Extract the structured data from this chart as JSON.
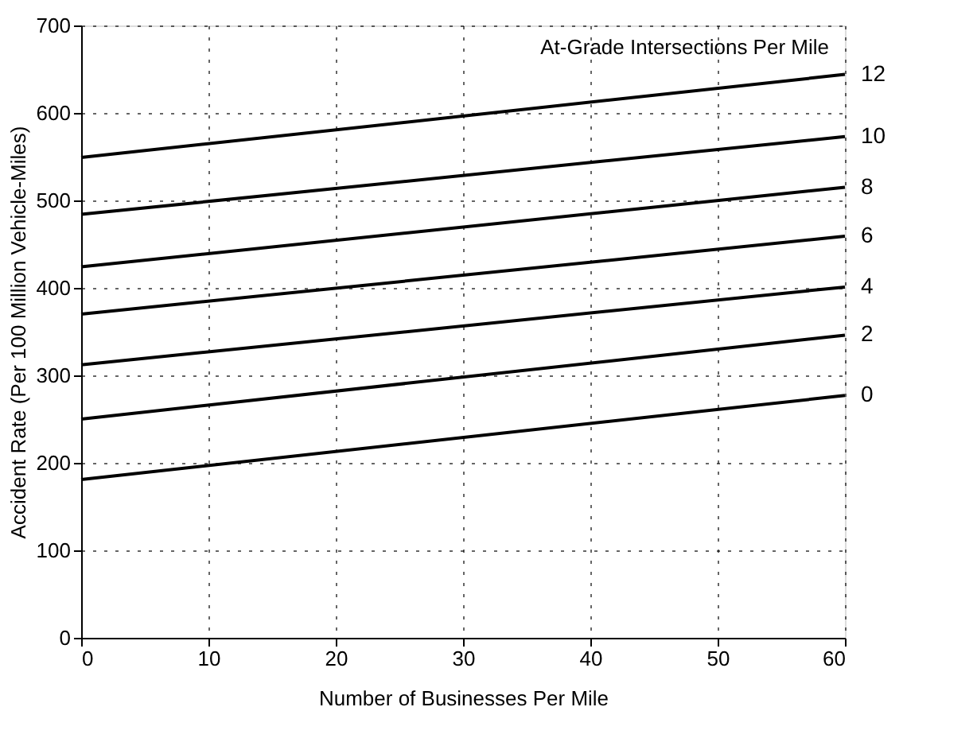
{
  "chart_data": {
    "type": "line",
    "xlabel": "Number of Businesses Per Mile",
    "ylabel": "Accident Rate (Per 100 Million Vehicle-Miles)",
    "legend_title": "At-Grade Intersections Per Mile",
    "x": [
      0,
      60
    ],
    "xlim": [
      0,
      60
    ],
    "xticks": [
      0,
      10,
      20,
      30,
      40,
      50,
      60
    ],
    "ylim": [
      0,
      700
    ],
    "yticks": [
      0,
      100,
      200,
      300,
      400,
      500,
      600,
      700
    ],
    "grid": true,
    "legend": false,
    "marker": "none",
    "line_style": "solid",
    "series": [
      {
        "name": "0",
        "color": "#000000",
        "values": [
          181,
          277
        ]
      },
      {
        "name": "2",
        "color": "#000000",
        "values": [
          250,
          346
        ]
      },
      {
        "name": "4",
        "color": "#000000",
        "values": [
          312,
          401
        ]
      },
      {
        "name": "6",
        "color": "#000000",
        "values": [
          370,
          459
        ]
      },
      {
        "name": "8",
        "color": "#000000",
        "values": [
          424,
          515
        ]
      },
      {
        "name": "10",
        "color": "#000000",
        "values": [
          484,
          573
        ]
      },
      {
        "name": "12",
        "color": "#000000",
        "values": [
          549,
          644
        ]
      }
    ]
  }
}
